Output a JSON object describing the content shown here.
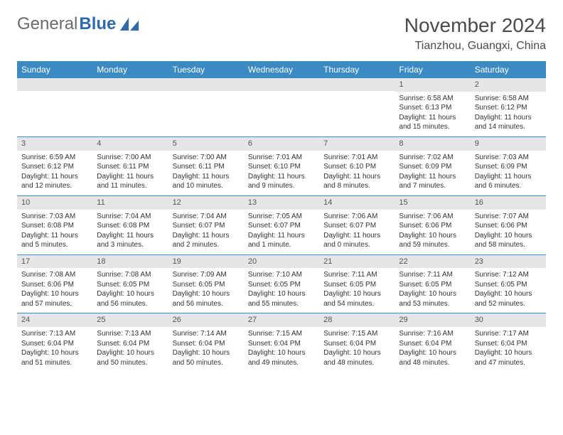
{
  "logo": {
    "text1": "General",
    "text2": "Blue"
  },
  "title": "November 2024",
  "location": "Tianzhou, Guangxi, China",
  "colors": {
    "header_bg": "#3b8ac4",
    "header_fg": "#ffffff",
    "row_border": "#3b8ac4",
    "daynum_bg": "#e6e6e6",
    "logo_gray": "#6a6a6a",
    "logo_blue": "#2f6aad"
  },
  "day_headers": [
    "Sunday",
    "Monday",
    "Tuesday",
    "Wednesday",
    "Thursday",
    "Friday",
    "Saturday"
  ],
  "weeks": [
    [
      {},
      {},
      {},
      {},
      {},
      {
        "n": "1",
        "sr": "Sunrise: 6:58 AM",
        "ss": "Sunset: 6:13 PM",
        "dl": "Daylight: 11 hours and 15 minutes."
      },
      {
        "n": "2",
        "sr": "Sunrise: 6:58 AM",
        "ss": "Sunset: 6:12 PM",
        "dl": "Daylight: 11 hours and 14 minutes."
      }
    ],
    [
      {
        "n": "3",
        "sr": "Sunrise: 6:59 AM",
        "ss": "Sunset: 6:12 PM",
        "dl": "Daylight: 11 hours and 12 minutes."
      },
      {
        "n": "4",
        "sr": "Sunrise: 7:00 AM",
        "ss": "Sunset: 6:11 PM",
        "dl": "Daylight: 11 hours and 11 minutes."
      },
      {
        "n": "5",
        "sr": "Sunrise: 7:00 AM",
        "ss": "Sunset: 6:11 PM",
        "dl": "Daylight: 11 hours and 10 minutes."
      },
      {
        "n": "6",
        "sr": "Sunrise: 7:01 AM",
        "ss": "Sunset: 6:10 PM",
        "dl": "Daylight: 11 hours and 9 minutes."
      },
      {
        "n": "7",
        "sr": "Sunrise: 7:01 AM",
        "ss": "Sunset: 6:10 PM",
        "dl": "Daylight: 11 hours and 8 minutes."
      },
      {
        "n": "8",
        "sr": "Sunrise: 7:02 AM",
        "ss": "Sunset: 6:09 PM",
        "dl": "Daylight: 11 hours and 7 minutes."
      },
      {
        "n": "9",
        "sr": "Sunrise: 7:03 AM",
        "ss": "Sunset: 6:09 PM",
        "dl": "Daylight: 11 hours and 6 minutes."
      }
    ],
    [
      {
        "n": "10",
        "sr": "Sunrise: 7:03 AM",
        "ss": "Sunset: 6:08 PM",
        "dl": "Daylight: 11 hours and 5 minutes."
      },
      {
        "n": "11",
        "sr": "Sunrise: 7:04 AM",
        "ss": "Sunset: 6:08 PM",
        "dl": "Daylight: 11 hours and 3 minutes."
      },
      {
        "n": "12",
        "sr": "Sunrise: 7:04 AM",
        "ss": "Sunset: 6:07 PM",
        "dl": "Daylight: 11 hours and 2 minutes."
      },
      {
        "n": "13",
        "sr": "Sunrise: 7:05 AM",
        "ss": "Sunset: 6:07 PM",
        "dl": "Daylight: 11 hours and 1 minute."
      },
      {
        "n": "14",
        "sr": "Sunrise: 7:06 AM",
        "ss": "Sunset: 6:07 PM",
        "dl": "Daylight: 11 hours and 0 minutes."
      },
      {
        "n": "15",
        "sr": "Sunrise: 7:06 AM",
        "ss": "Sunset: 6:06 PM",
        "dl": "Daylight: 10 hours and 59 minutes."
      },
      {
        "n": "16",
        "sr": "Sunrise: 7:07 AM",
        "ss": "Sunset: 6:06 PM",
        "dl": "Daylight: 10 hours and 58 minutes."
      }
    ],
    [
      {
        "n": "17",
        "sr": "Sunrise: 7:08 AM",
        "ss": "Sunset: 6:06 PM",
        "dl": "Daylight: 10 hours and 57 minutes."
      },
      {
        "n": "18",
        "sr": "Sunrise: 7:08 AM",
        "ss": "Sunset: 6:05 PM",
        "dl": "Daylight: 10 hours and 56 minutes."
      },
      {
        "n": "19",
        "sr": "Sunrise: 7:09 AM",
        "ss": "Sunset: 6:05 PM",
        "dl": "Daylight: 10 hours and 56 minutes."
      },
      {
        "n": "20",
        "sr": "Sunrise: 7:10 AM",
        "ss": "Sunset: 6:05 PM",
        "dl": "Daylight: 10 hours and 55 minutes."
      },
      {
        "n": "21",
        "sr": "Sunrise: 7:11 AM",
        "ss": "Sunset: 6:05 PM",
        "dl": "Daylight: 10 hours and 54 minutes."
      },
      {
        "n": "22",
        "sr": "Sunrise: 7:11 AM",
        "ss": "Sunset: 6:05 PM",
        "dl": "Daylight: 10 hours and 53 minutes."
      },
      {
        "n": "23",
        "sr": "Sunrise: 7:12 AM",
        "ss": "Sunset: 6:05 PM",
        "dl": "Daylight: 10 hours and 52 minutes."
      }
    ],
    [
      {
        "n": "24",
        "sr": "Sunrise: 7:13 AM",
        "ss": "Sunset: 6:04 PM",
        "dl": "Daylight: 10 hours and 51 minutes."
      },
      {
        "n": "25",
        "sr": "Sunrise: 7:13 AM",
        "ss": "Sunset: 6:04 PM",
        "dl": "Daylight: 10 hours and 50 minutes."
      },
      {
        "n": "26",
        "sr": "Sunrise: 7:14 AM",
        "ss": "Sunset: 6:04 PM",
        "dl": "Daylight: 10 hours and 50 minutes."
      },
      {
        "n": "27",
        "sr": "Sunrise: 7:15 AM",
        "ss": "Sunset: 6:04 PM",
        "dl": "Daylight: 10 hours and 49 minutes."
      },
      {
        "n": "28",
        "sr": "Sunrise: 7:15 AM",
        "ss": "Sunset: 6:04 PM",
        "dl": "Daylight: 10 hours and 48 minutes."
      },
      {
        "n": "29",
        "sr": "Sunrise: 7:16 AM",
        "ss": "Sunset: 6:04 PM",
        "dl": "Daylight: 10 hours and 48 minutes."
      },
      {
        "n": "30",
        "sr": "Sunrise: 7:17 AM",
        "ss": "Sunset: 6:04 PM",
        "dl": "Daylight: 10 hours and 47 minutes."
      }
    ]
  ]
}
